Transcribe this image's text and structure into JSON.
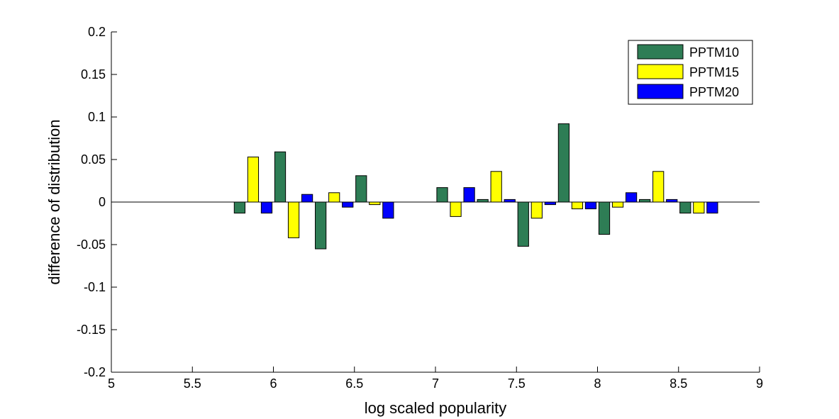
{
  "chart_data": {
    "type": "bar",
    "xlabel": "log scaled popularity",
    "ylabel": "difference of distribution",
    "xlim": [
      5,
      9
    ],
    "ylim": [
      -0.2,
      0.2
    ],
    "xticks": [
      5,
      5.5,
      6,
      6.5,
      7,
      7.5,
      8,
      8.5,
      9
    ],
    "xtick_labels": [
      "5",
      "5.5",
      "6",
      "6.5",
      "7",
      "7.5",
      "8",
      "8.5",
      "9"
    ],
    "yticks": [
      -0.2,
      -0.15,
      -0.1,
      -0.05,
      0,
      0.05,
      0.1,
      0.15,
      0.2
    ],
    "ytick_labels": [
      "-0.2",
      "-0.15",
      "-0.1",
      "-0.05",
      "0",
      "0.05",
      "0.1",
      "0.15",
      "0.2"
    ],
    "x": [
      5.875,
      6.125,
      6.375,
      6.625,
      7.125,
      7.375,
      7.625,
      7.875,
      8.125,
      8.375,
      8.625
    ],
    "bar_group_width": 0.25,
    "legend_position": "top-right",
    "grid": false,
    "series": [
      {
        "name": "PPTM10",
        "color": "#2e7d55",
        "values": [
          -0.013,
          0.059,
          -0.055,
          0.031,
          0.017,
          0.003,
          -0.052,
          0.092,
          -0.038,
          0.003,
          -0.013
        ]
      },
      {
        "name": "PPTM15",
        "color": "#ffff00",
        "values": [
          0.053,
          -0.042,
          0.011,
          -0.003,
          -0.017,
          0.036,
          -0.019,
          -0.008,
          -0.006,
          0.036,
          -0.013
        ]
      },
      {
        "name": "PPTM20",
        "color": "#0000ff",
        "values": [
          -0.013,
          0.009,
          -0.006,
          -0.019,
          0.017,
          0.003,
          -0.003,
          -0.008,
          0.011,
          0.003,
          -0.013
        ]
      }
    ]
  }
}
